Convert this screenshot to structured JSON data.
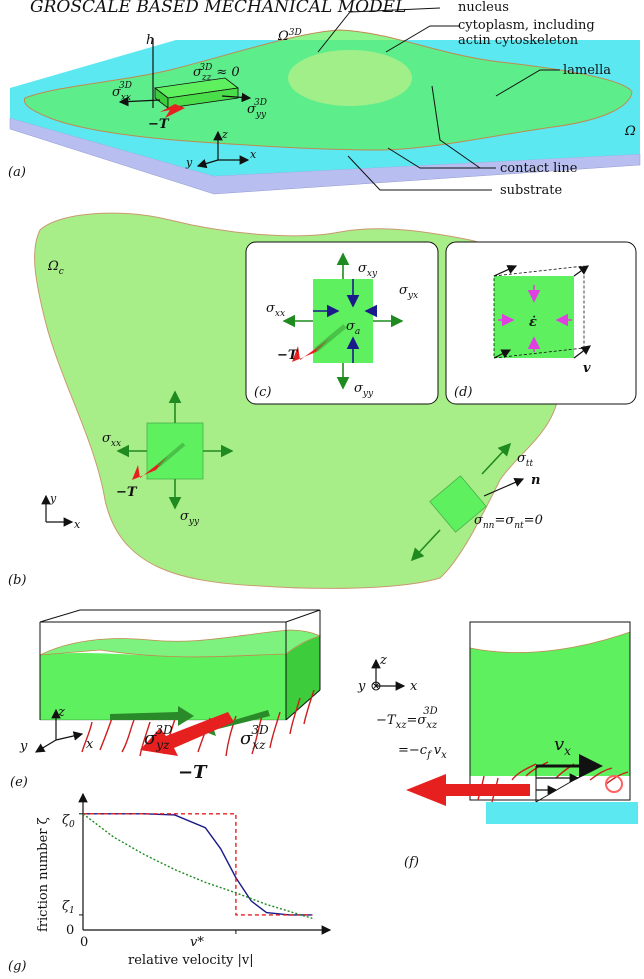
{
  "title": "GROSCALE BASED MECHANICAL MODEL",
  "colors": {
    "cell": "#5ef05e",
    "cell_light": "#a8ee88",
    "substrate_top": "#5ce8f0",
    "substrate_side": "#b8bff0",
    "traction": "#e61f1f",
    "stress_arrow": "#1f8a1f",
    "normal_arrow": "#1a1a8a",
    "strain_arrow": "#e040e0"
  },
  "panel_a": {
    "label": "(a)",
    "omega3d": "Ω",
    "omega3d_sup": "3D",
    "omega": "Ω",
    "h": "h",
    "sigma_zz": "σ",
    "sigma_zz_sub": "zz",
    "sigma_zz_sup": "3D",
    "sigma_zz_tail": "≈ 0",
    "sigma_xx": "σ",
    "sigma_xx_sub": "xx",
    "sigma_xx_sup": "3D",
    "sigma_yy": "σ",
    "sigma_yy_sub": "yy",
    "sigma_yy_sup": "3D",
    "traction": "−T",
    "axis_x": "x",
    "axis_y": "y",
    "axis_z": "z",
    "callouts": [
      "nucleus",
      "cytoplasm, including",
      "actin cytoskeleton",
      "lamella",
      "contact line",
      "substrate"
    ]
  },
  "panel_b": {
    "label": "(b)",
    "omega_c": "Ω",
    "omega_c_sub": "c",
    "sigma_xx": "σ",
    "sigma_xx_sub": "xx",
    "sigma_yy": "σ",
    "sigma_yy_sub": "yy",
    "traction": "−T",
    "n": "n",
    "sigma_tt": "σ",
    "sigma_tt_sub": "tt",
    "sigma_nn": "σ",
    "sigma_nn_sub": "nn",
    "sigma_nt_eq": "=σ",
    "sigma_nt_sub": "nt",
    "zero": "=0",
    "axis_x": "x",
    "axis_y": "y"
  },
  "panel_c": {
    "label": "(c)",
    "sigma_xy": "σ",
    "sigma_xy_sub": "xy",
    "sigma_yx": "σ",
    "sigma_yx_sub": "yx",
    "sigma_xx": "σ",
    "sigma_xx_sub": "xx",
    "sigma_yy": "σ",
    "sigma_yy_sub": "yy",
    "sigma_a": "σ",
    "sigma_a_sub": "a",
    "traction": "−T"
  },
  "panel_d": {
    "label": "(d)",
    "strain": "ε̇",
    "v": "v"
  },
  "panel_e": {
    "label": "(e)",
    "sigma_yz": "σ",
    "sigma_yz_sub": "yz",
    "sigma_yz_sup": "3D",
    "sigma_xz": "σ",
    "sigma_xz_sub": "xz",
    "sigma_xz_sup": "3D",
    "traction": "−T",
    "axis_x": "x",
    "axis_y": "y",
    "axis_z": "z"
  },
  "panel_f": {
    "label": "(f)",
    "axis_x": "x",
    "axis_y": "y",
    "axis_z": "z",
    "v": "v",
    "v_sub": "x",
    "eq1_lhs": "−T",
    "eq1_lhs_sub": "xz",
    "eq1_rhs": "=σ",
    "eq1_rhs_sub": "xz",
    "eq1_rhs_sup": "3D",
    "eq2": "=−c",
    "eq2_sub": "f",
    "eq2_tail": "v",
    "eq2_tail_sub": "x"
  },
  "panel_g": {
    "label": "(g)",
    "ylabel": "friction number ζ",
    "xlabel": "relative velocity |v|",
    "zeta0": "ζ",
    "zeta0_sub": "0",
    "zeta1": "ζ",
    "zeta1_sub": "1",
    "zero_y": "0",
    "zero_x": "0",
    "vstar": "v*"
  },
  "chart_data": {
    "type": "line",
    "xlabel": "relative velocity |v|",
    "ylabel": "friction number ζ",
    "x_ticks": [
      "0",
      "v*"
    ],
    "y_ticks": [
      "0",
      "ζ1",
      "ζ0"
    ],
    "xlim": [
      0,
      1.55
    ],
    "ylim": [
      0,
      1.05
    ],
    "grid": false,
    "series": [
      {
        "style": "solid",
        "color": "#1a1a8a",
        "x": [
          0,
          0.4,
          0.6,
          0.8,
          0.9,
          1.0,
          1.1,
          1.2,
          1.35,
          1.5
        ],
        "y": [
          1.0,
          1.0,
          0.99,
          0.88,
          0.7,
          0.45,
          0.25,
          0.15,
          0.13,
          0.13
        ]
      },
      {
        "style": "dashed",
        "color": "#e61f1f",
        "x": [
          0,
          0.8,
          0.8,
          1.0,
          1.0,
          1.5
        ],
        "y": [
          1.0,
          1.0,
          1.0,
          1.0,
          0.13,
          0.13
        ]
      },
      {
        "style": "dotted",
        "color": "#1f8a1f",
        "x": [
          0,
          0.2,
          0.4,
          0.6,
          0.8,
          1.0,
          1.2,
          1.5
        ],
        "y": [
          1.0,
          0.8,
          0.65,
          0.52,
          0.41,
          0.32,
          0.22,
          0.1
        ]
      }
    ]
  }
}
